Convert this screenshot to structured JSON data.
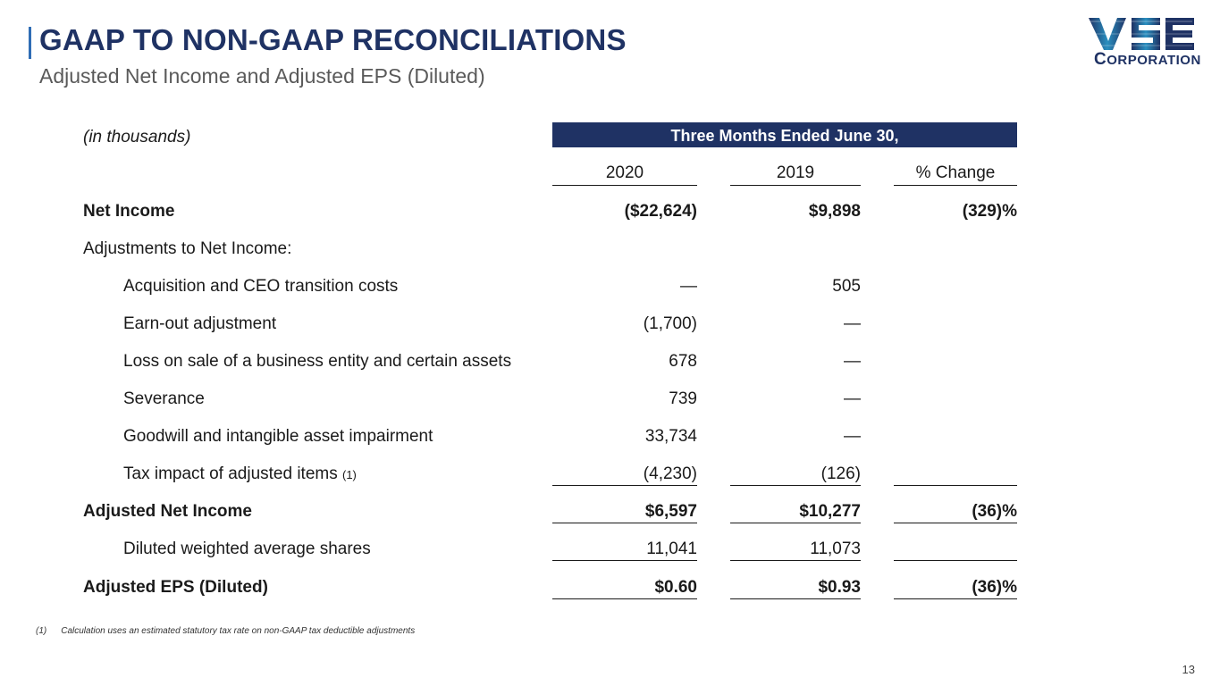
{
  "title": "GAAP TO NON-GAAP RECONCILIATIONS",
  "subtitle": "Adjusted Net Income and Adjusted EPS (Diluted)",
  "logo": {
    "main": "VSE",
    "sub_big": "C",
    "sub_rest": "ORPORATION"
  },
  "colors": {
    "navy": "#1f3264",
    "accent": "#2f6db5"
  },
  "table": {
    "units_label": "(in thousands)",
    "period_header": "Three Months Ended June 30,",
    "columns": [
      "2020",
      "2019",
      "% Change"
    ],
    "rows": [
      {
        "label": "Net Income",
        "v2020": "($22,624)",
        "v2019": "$9,898",
        "pct": "(329)%"
      },
      {
        "label": "Adjustments to Net Income:",
        "v2020": "",
        "v2019": "",
        "pct": ""
      },
      {
        "label": "Acquisition and CEO transition costs",
        "v2020": "—",
        "v2019": "505",
        "pct": ""
      },
      {
        "label": "Earn-out adjustment",
        "v2020": "(1,700)",
        "v2019": "—",
        "pct": ""
      },
      {
        "label": "Loss on sale of a business entity and certain assets",
        "v2020": "678",
        "v2019": "—",
        "pct": ""
      },
      {
        "label": "Severance",
        "v2020": "739",
        "v2019": "—",
        "pct": ""
      },
      {
        "label": "Goodwill and intangible asset impairment",
        "v2020": "33,734",
        "v2019": "—",
        "pct": ""
      },
      {
        "label": "Tax impact of adjusted items",
        "footnote_ref": "(1)",
        "v2020": "(4,230)",
        "v2019": "(126)",
        "pct": ""
      },
      {
        "label": "Adjusted Net Income",
        "v2020": "$6,597",
        "v2019": "$10,277",
        "pct": "(36)%"
      },
      {
        "label": "Diluted weighted average shares",
        "v2020": "11,041",
        "v2019": "11,073",
        "pct": ""
      },
      {
        "label": "Adjusted EPS (Diluted)",
        "v2020": "$0.60",
        "v2019": "$0.93",
        "pct": "(36)%"
      }
    ]
  },
  "footnote": {
    "number": "(1)",
    "text": "Calculation uses an estimated statutory tax rate on non-GAAP tax deductible adjustments"
  },
  "page_number": "13"
}
